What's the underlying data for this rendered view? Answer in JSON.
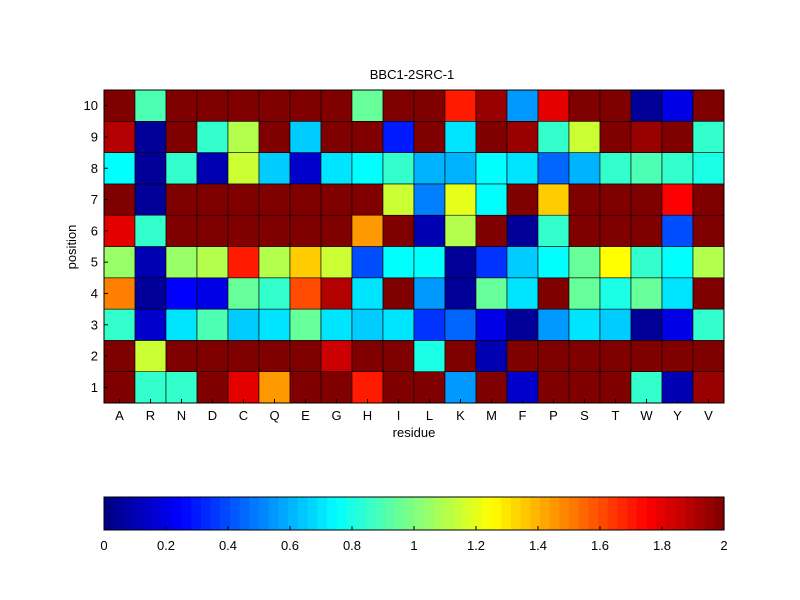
{
  "chart_data": {
    "type": "heatmap",
    "title": "BBC1-2SRC-1",
    "xlabel": "residue",
    "ylabel": "position",
    "x_categories": [
      "A",
      "R",
      "N",
      "D",
      "C",
      "Q",
      "E",
      "G",
      "H",
      "I",
      "L",
      "K",
      "M",
      "F",
      "P",
      "S",
      "T",
      "W",
      "Y",
      "V"
    ],
    "y_categories": [
      "1",
      "2",
      "3",
      "4",
      "5",
      "6",
      "7",
      "8",
      "9",
      "10"
    ],
    "colormap": "jet",
    "clim": [
      0,
      2
    ],
    "colorbar": {
      "orientation": "horizontal",
      "placement": "bottom",
      "ticks": [
        0,
        0.2,
        0.4,
        0.6,
        0.8,
        1,
        1.2,
        1.4,
        1.6,
        1.8,
        2
      ],
      "tick_labels": [
        "0",
        "0.2",
        "0.4",
        "0.6",
        "0.8",
        "1",
        "1.2",
        "1.4",
        "1.6",
        "1.8",
        "2"
      ]
    },
    "values": [
      [
        2.0,
        0.85,
        0.85,
        2.0,
        1.8,
        1.45,
        2.0,
        2.0,
        1.7,
        2.0,
        2.0,
        0.55,
        2.0,
        0.15,
        2.0,
        2.0,
        2.0,
        0.85,
        0.1,
        1.95
      ],
      [
        2.0,
        1.15,
        2.0,
        2.0,
        2.0,
        2.0,
        2.0,
        1.85,
        2.0,
        2.0,
        0.8,
        2.0,
        0.1,
        2.0,
        2.0,
        2.0,
        2.0,
        2.0,
        2.0,
        2.0
      ],
      [
        0.85,
        0.15,
        0.7,
        0.9,
        0.65,
        0.7,
        0.95,
        0.7,
        0.65,
        0.7,
        0.35,
        0.45,
        0.2,
        0.05,
        0.55,
        0.7,
        0.65,
        0.05,
        0.2,
        0.85
      ],
      [
        1.5,
        0.05,
        0.25,
        0.2,
        0.95,
        0.85,
        1.6,
        1.9,
        0.7,
        2.0,
        0.55,
        0.05,
        0.95,
        0.7,
        2.0,
        0.95,
        0.8,
        0.95,
        0.7,
        2.0
      ],
      [
        1.05,
        0.1,
        1.05,
        1.1,
        1.7,
        1.1,
        1.35,
        1.15,
        0.4,
        0.75,
        0.75,
        0.05,
        0.35,
        0.65,
        0.75,
        0.95,
        1.25,
        0.85,
        0.75,
        1.1
      ],
      [
        1.8,
        0.85,
        2.0,
        2.0,
        2.0,
        2.0,
        2.0,
        2.0,
        1.45,
        2.0,
        0.1,
        1.1,
        2.0,
        0.05,
        0.85,
        2.0,
        2.0,
        2.0,
        0.4,
        2.0
      ],
      [
        2.0,
        0.05,
        2.0,
        2.0,
        2.0,
        2.0,
        2.0,
        2.0,
        2.0,
        1.15,
        0.5,
        1.2,
        0.75,
        2.0,
        1.35,
        2.0,
        2.0,
        2.0,
        1.75,
        2.0
      ],
      [
        0.75,
        0.05,
        0.85,
        0.1,
        1.15,
        0.65,
        0.15,
        0.7,
        0.75,
        0.85,
        0.6,
        0.6,
        0.75,
        0.7,
        0.45,
        0.6,
        0.85,
        0.9,
        0.85,
        0.8
      ],
      [
        1.9,
        0.05,
        2.0,
        0.85,
        1.1,
        2.0,
        0.65,
        2.0,
        2.0,
        0.3,
        2.0,
        0.7,
        2.0,
        1.95,
        0.85,
        1.15,
        2.0,
        1.95,
        2.0,
        0.85
      ],
      [
        2.0,
        0.9,
        2.0,
        2.0,
        2.0,
        2.0,
        2.0,
        2.0,
        0.95,
        2.0,
        2.0,
        1.7,
        1.95,
        0.55,
        1.8,
        2.0,
        2.0,
        0.05,
        0.2,
        2.0
      ]
    ]
  }
}
